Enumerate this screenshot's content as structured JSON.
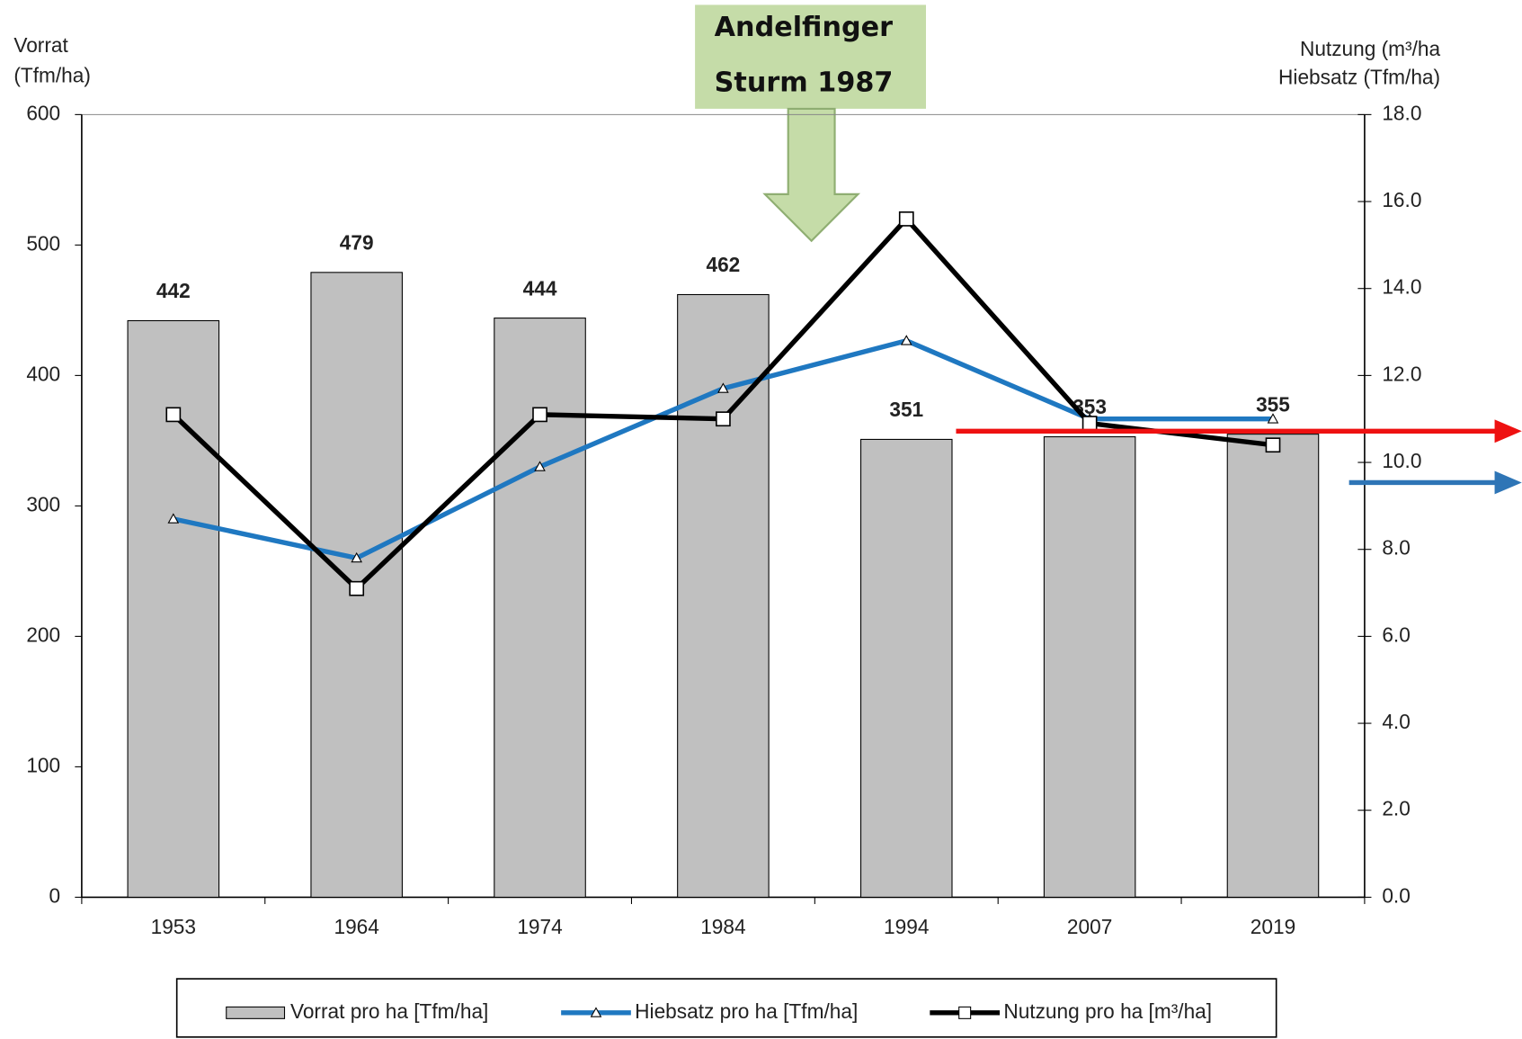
{
  "chart_data": {
    "type": "bar",
    "annotation": {
      "lines": [
        "Andelfinger",
        "Sturm 1987"
      ]
    },
    "ylabel": [
      "Vorrat",
      "(Tfm/ha)"
    ],
    "y2label": [
      "Nutzung (m³/ha",
      "Hiebsatz (Tfm/ha)"
    ],
    "categories": [
      "1953",
      "1964",
      "1974",
      "1984",
      "1994",
      "2007",
      "2019"
    ],
    "series": [
      {
        "name": "Vorrat pro ha [Tfm/ha]",
        "type": "bar",
        "color": "#c0c0c0",
        "values": [
          442,
          479,
          444,
          462,
          351,
          353,
          355
        ]
      },
      {
        "name": "Hiebsatz pro ha [Tfm/ha]",
        "type": "line",
        "axis": "y2",
        "marker": "triangle",
        "color": "#1f78c1",
        "values": [
          8.7,
          7.8,
          9.9,
          11.7,
          12.8,
          11.0,
          11.0
        ]
      },
      {
        "name": "Nutzung pro ha [m³/ha]",
        "type": "line",
        "axis": "y2",
        "marker": "square",
        "color": "#000000",
        "values": [
          11.1,
          7.1,
          11.1,
          11.0,
          15.6,
          10.9,
          10.4
        ]
      }
    ],
    "ylim": [
      0,
      600
    ],
    "yticks": [
      0,
      100,
      200,
      300,
      400,
      500,
      600
    ],
    "y2lim": [
      0,
      18
    ],
    "y2ticks": [
      {
        "value": 0,
        "label": "0.0"
      },
      {
        "value": 2,
        "label": "2.0"
      },
      {
        "value": 4,
        "label": "4.0"
      },
      {
        "value": 6,
        "label": "6.0"
      },
      {
        "value": 8,
        "label": "8.0"
      },
      {
        "value": 10,
        "label": "10.0"
      },
      {
        "value": 12,
        "label": "12.0"
      },
      {
        "value": 14,
        "label": "14.0"
      },
      {
        "value": 16,
        "label": "16.0"
      },
      {
        "value": 18,
        "label": "18.0"
      }
    ],
    "grid": false,
    "legend": "bottom"
  }
}
